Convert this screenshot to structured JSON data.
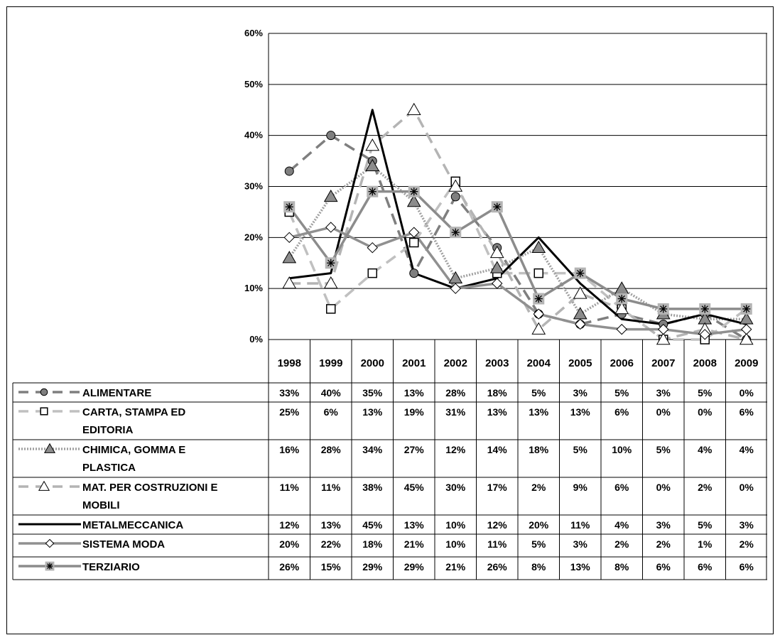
{
  "chart_data": {
    "type": "line",
    "title": "",
    "xlabel": "",
    "ylabel": "",
    "ylim": [
      0,
      0.6
    ],
    "yticks": [
      "0%",
      "10%",
      "20%",
      "30%",
      "40%",
      "50%",
      "60%"
    ],
    "grid": true,
    "legend": "data-table-below",
    "x": [
      "1998",
      "1999",
      "2000",
      "2001",
      "2002",
      "2003",
      "2004",
      "2005",
      "2006",
      "2007",
      "2008",
      "2009"
    ],
    "series": [
      {
        "name": "ALIMENTARE",
        "name_lines": [
          "ALIMENTARE"
        ],
        "values": [
          0.33,
          0.4,
          0.35,
          0.13,
          0.28,
          0.18,
          0.05,
          0.03,
          0.05,
          0.03,
          0.05,
          0.0
        ],
        "labels": [
          "33%",
          "40%",
          "35%",
          "13%",
          "28%",
          "18%",
          "5%",
          "3%",
          "5%",
          "3%",
          "5%",
          "0%"
        ],
        "color": "#7f7f7f",
        "dash": "long-dash",
        "marker": "circle",
        "marker_fill": "#7f7f7f"
      },
      {
        "name": "CARTA, STAMPA ED EDITORIA",
        "name_lines": [
          "CARTA, STAMPA ED",
          "EDITORIA"
        ],
        "values": [
          0.25,
          0.06,
          0.13,
          0.19,
          0.31,
          0.13,
          0.13,
          0.13,
          0.06,
          0.0,
          0.0,
          0.06
        ],
        "labels": [
          "25%",
          "6%",
          "13%",
          "19%",
          "31%",
          "13%",
          "13%",
          "13%",
          "6%",
          "0%",
          "0%",
          "6%"
        ],
        "color": "#c0c0c0",
        "dash": "long-dash",
        "marker": "square",
        "marker_fill": "#ffffff"
      },
      {
        "name": "CHIMICA, GOMMA E PLASTICA",
        "name_lines": [
          "CHIMICA, GOMMA E",
          "PLASTICA"
        ],
        "values": [
          0.16,
          0.28,
          0.34,
          0.27,
          0.12,
          0.14,
          0.18,
          0.05,
          0.1,
          0.05,
          0.04,
          0.04
        ],
        "labels": [
          "16%",
          "28%",
          "34%",
          "27%",
          "12%",
          "14%",
          "18%",
          "5%",
          "10%",
          "5%",
          "4%",
          "4%"
        ],
        "color": "#a0a0a0",
        "dash": "dotted",
        "marker": "triangle",
        "marker_fill": "#8c8c8c"
      },
      {
        "name": "MAT. PER COSTRUZIONI E MOBILI",
        "name_lines": [
          "MAT. PER COSTRUZIONI E",
          "MOBILI"
        ],
        "values": [
          0.11,
          0.11,
          0.38,
          0.45,
          0.3,
          0.17,
          0.02,
          0.09,
          0.06,
          0.0,
          0.02,
          0.0
        ],
        "labels": [
          "11%",
          "11%",
          "38%",
          "45%",
          "30%",
          "17%",
          "2%",
          "9%",
          "6%",
          "0%",
          "2%",
          "0%"
        ],
        "color": "#b4b4b4",
        "dash": "long-dash",
        "marker": "triangle",
        "marker_fill": "#ffffff"
      },
      {
        "name": "METALMECCANICA",
        "name_lines": [
          "METALMECCANICA"
        ],
        "values": [
          0.12,
          0.13,
          0.45,
          0.13,
          0.1,
          0.12,
          0.2,
          0.11,
          0.04,
          0.03,
          0.05,
          0.03
        ],
        "labels": [
          "12%",
          "13%",
          "45%",
          "13%",
          "10%",
          "12%",
          "20%",
          "11%",
          "4%",
          "3%",
          "5%",
          "3%"
        ],
        "color": "#000000",
        "dash": "solid",
        "marker": "none",
        "marker_fill": "#000000"
      },
      {
        "name": "SISTEMA MODA",
        "name_lines": [
          "SISTEMA MODA"
        ],
        "values": [
          0.2,
          0.22,
          0.18,
          0.21,
          0.1,
          0.11,
          0.05,
          0.03,
          0.02,
          0.02,
          0.01,
          0.02
        ],
        "labels": [
          "20%",
          "22%",
          "18%",
          "21%",
          "10%",
          "11%",
          "5%",
          "3%",
          "2%",
          "2%",
          "1%",
          "2%"
        ],
        "color": "#909090",
        "dash": "solid",
        "marker": "diamond",
        "marker_fill": "#ffffff"
      },
      {
        "name": "TERZIARIO",
        "name_lines": [
          "TERZIARIO"
        ],
        "values": [
          0.26,
          0.15,
          0.29,
          0.29,
          0.21,
          0.26,
          0.08,
          0.13,
          0.08,
          0.06,
          0.06,
          0.06
        ],
        "labels": [
          "26%",
          "15%",
          "29%",
          "29%",
          "21%",
          "26%",
          "8%",
          "13%",
          "8%",
          "6%",
          "6%",
          "6%"
        ],
        "color": "#8c8c8c",
        "dash": "solid",
        "marker": "star-square",
        "marker_fill": "#b4b4b4"
      }
    ]
  }
}
